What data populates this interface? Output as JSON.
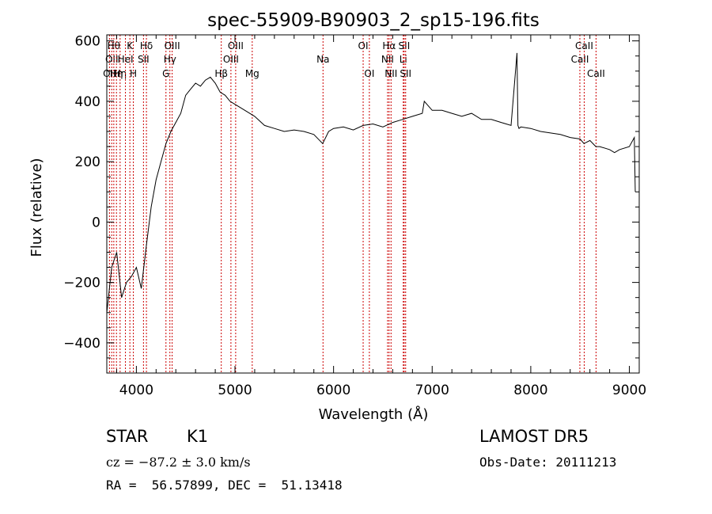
{
  "chart_data": {
    "type": "line",
    "title": "spec-55909-B90903_2_sp15-196.fits",
    "xlabel": "Wavelength (Å)",
    "ylabel": "Flux (relative)",
    "xlim": [
      3700,
      9100
    ],
    "ylim": [
      -500,
      620
    ],
    "xticks": [
      4000,
      5000,
      6000,
      7000,
      8000,
      9000
    ],
    "yticks": [
      -400,
      -200,
      0,
      200,
      400,
      600
    ],
    "line_color": "#000000",
    "marker_color": "#cc0000",
    "series": [
      {
        "x": [
          3700,
          3750,
          3800,
          3850,
          3900,
          3950,
          4000,
          4050,
          4100,
          4150,
          4200,
          4250,
          4300,
          4350,
          4400,
          4450,
          4500,
          4550,
          4600,
          4650,
          4700,
          4750,
          4800,
          4850,
          4900,
          4950,
          5000,
          5100,
          5200,
          5300,
          5400,
          5500,
          5600,
          5700,
          5800,
          5890,
          5950,
          6000,
          6100,
          6200,
          6300,
          6400,
          6500,
          6600,
          6700,
          6800,
          6900,
          6920,
          7000,
          7100,
          7200,
          7300,
          7400,
          7500,
          7600,
          7700,
          7800,
          7860,
          7870,
          7880,
          7900,
          8000,
          8100,
          8200,
          8300,
          8400,
          8500,
          8540,
          8600,
          8660,
          8700,
          8800,
          8850,
          8900,
          9000,
          9050,
          9060
        ],
        "y": [
          -300,
          -150,
          -100,
          -250,
          -200,
          -180,
          -150,
          -220,
          -80,
          50,
          140,
          200,
          260,
          300,
          330,
          360,
          420,
          440,
          460,
          450,
          470,
          480,
          460,
          430,
          420,
          400,
          390,
          370,
          350,
          320,
          310,
          300,
          305,
          300,
          290,
          260,
          300,
          310,
          315,
          305,
          320,
          325,
          315,
          330,
          340,
          350,
          360,
          400,
          370,
          370,
          360,
          350,
          360,
          340,
          340,
          330,
          320,
          560,
          320,
          310,
          315,
          310,
          300,
          295,
          290,
          280,
          275,
          260,
          270,
          250,
          250,
          240,
          230,
          240,
          250,
          280,
          100
        ]
      }
    ],
    "line_markers": [
      {
        "x": 3727,
        "label": "OII",
        "row": 2
      },
      {
        "x": 3750,
        "label": "OII",
        "row": 1
      },
      {
        "x": 3771,
        "label": "Hθ",
        "row": 0
      },
      {
        "x": 3798,
        "label": "Hη",
        "row": 2
      },
      {
        "x": 3835,
        "label": "Hη",
        "row": 2
      },
      {
        "x": 3889,
        "label": "HeI",
        "row": 1
      },
      {
        "x": 3934,
        "label": "K",
        "row": 0
      },
      {
        "x": 3969,
        "label": "H",
        "row": 2
      },
      {
        "x": 4072,
        "label": "SII",
        "row": 1
      },
      {
        "x": 4102,
        "label": "Hδ",
        "row": 0
      },
      {
        "x": 4300,
        "label": "G",
        "row": 2
      },
      {
        "x": 4340,
        "label": "Hγ",
        "row": 1
      },
      {
        "x": 4363,
        "label": "OIII",
        "row": 0
      },
      {
        "x": 4861,
        "label": "Hβ",
        "row": 2
      },
      {
        "x": 4959,
        "label": "OIII",
        "row": 1
      },
      {
        "x": 5007,
        "label": "OIII",
        "row": 0
      },
      {
        "x": 5175,
        "label": "Mg",
        "row": 2
      },
      {
        "x": 5893,
        "label": "Na",
        "row": 1
      },
      {
        "x": 6300,
        "label": "OI",
        "row": 0
      },
      {
        "x": 6363,
        "label": "OI",
        "row": 2
      },
      {
        "x": 6548,
        "label": "NII",
        "row": 1
      },
      {
        "x": 6563,
        "label": "Hα",
        "row": 0
      },
      {
        "x": 6583,
        "label": "NII",
        "row": 2
      },
      {
        "x": 6707,
        "label": "Li",
        "row": 1
      },
      {
        "x": 6716,
        "label": "SII",
        "row": 0
      },
      {
        "x": 6731,
        "label": "SII",
        "row": 2
      },
      {
        "x": 8498,
        "label": "CaII",
        "row": 1
      },
      {
        "x": 8542,
        "label": "CaII",
        "row": 0
      },
      {
        "x": 8662,
        "label": "CaII",
        "row": 2
      }
    ]
  },
  "info": {
    "object_class": "STAR",
    "subclass": "K1",
    "survey": "LAMOST DR5",
    "redshift": "cz = −87.2 ± 3.0 km/s",
    "obs_date": "Obs-Date: 20111213",
    "coords": "RA =  56.57899, DEC =  51.13418"
  }
}
